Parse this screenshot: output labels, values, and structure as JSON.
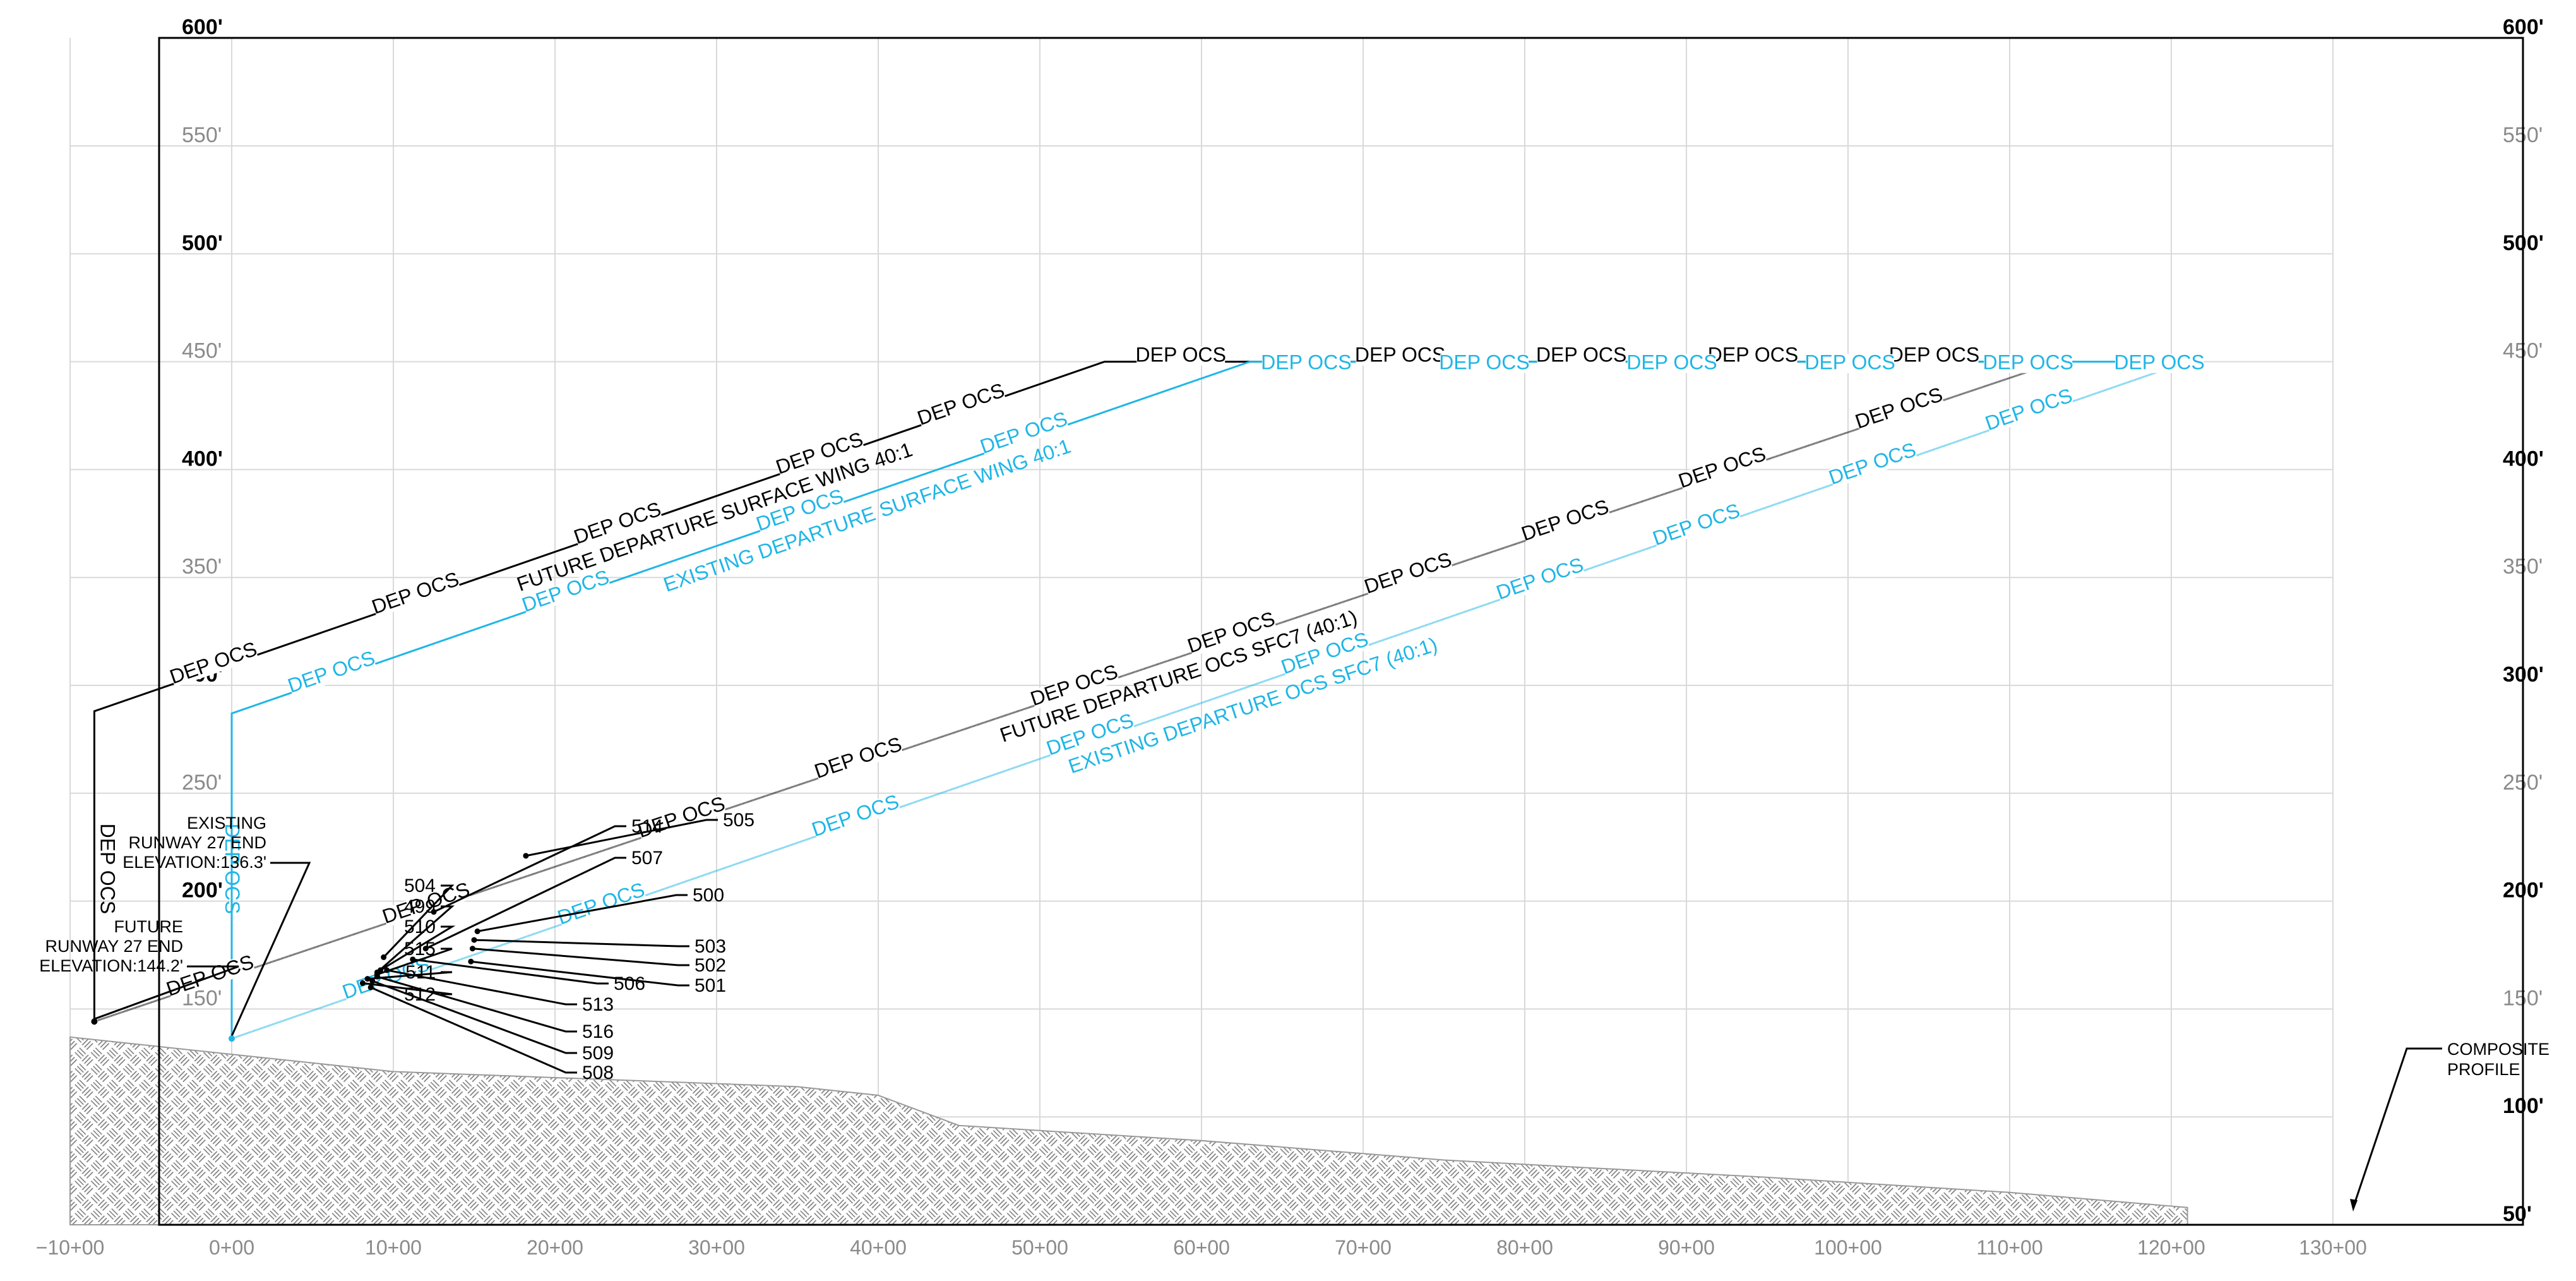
{
  "chart_data": {
    "type": "line",
    "x_axis": {
      "range": [
        "-10+00",
        "130+00"
      ],
      "tick_labels": [
        "-10+00",
        "0+00",
        "10+00",
        "20+00",
        "30+00",
        "40+00",
        "50+00",
        "60+00",
        "70+00",
        "80+00",
        "90+00",
        "100+00",
        "110+00",
        "120+00",
        "130+00"
      ]
    },
    "y_axis": {
      "range": [
        50,
        600
      ],
      "major_tick_labels": [
        "600'",
        "500'",
        "400'",
        "300'",
        "200'",
        "100'",
        "50'"
      ],
      "minor_tick_labels": [
        "550'",
        "450'",
        "350'",
        "250'",
        "150'"
      ],
      "labels_both_sides": true
    },
    "grid": true,
    "series": [
      {
        "name": "FUTURE DEPARTURE SURFACE WING 40:1",
        "color": "#000000",
        "points": [
          [
            -8.5,
            144.2
          ],
          [
            -8.5,
            288
          ],
          [
            54,
            450
          ],
          [
            113,
            450
          ]
        ]
      },
      {
        "name": "EXISTING DEPARTURE SURFACE WING 40:1",
        "color": "#1fb6e6",
        "points": [
          [
            0,
            136.3
          ],
          [
            0,
            287
          ],
          [
            63,
            450
          ],
          [
            121,
            450
          ]
        ]
      },
      {
        "name": "FUTURE DEPARTURE OCS SFC7 (40:1)",
        "color": "#000000",
        "points": [
          [
            -8.5,
            144.2
          ],
          [
            113,
            450
          ]
        ]
      },
      {
        "name": "EXISTING DEPARTURE OCS SFC7 (40:1)",
        "color": "#1fb6e6",
        "points": [
          [
            0,
            136.3
          ],
          [
            121,
            450
          ]
        ]
      }
    ],
    "composite_profile": [
      [
        -10,
        137
      ],
      [
        10,
        121
      ],
      [
        35,
        114
      ],
      [
        40,
        110
      ],
      [
        45,
        96
      ],
      [
        60,
        89
      ],
      [
        75,
        80
      ],
      [
        95,
        72
      ],
      [
        110,
        65
      ],
      [
        121,
        58
      ]
    ],
    "obstacles": [
      {
        "id": "499",
        "sta": 9.0,
        "elev": 167
      },
      {
        "id": "500",
        "sta": 15.2,
        "elev": 186
      },
      {
        "id": "501",
        "sta": 14.8,
        "elev": 172
      },
      {
        "id": "502",
        "sta": 14.9,
        "elev": 178
      },
      {
        "id": "503",
        "sta": 15.0,
        "elev": 182
      },
      {
        "id": "504",
        "sta": 9.4,
        "elev": 174
      },
      {
        "id": "505",
        "sta": 18.2,
        "elev": 221
      },
      {
        "id": "506",
        "sta": 11.2,
        "elev": 173
      },
      {
        "id": "507",
        "sta": 12.0,
        "elev": 178
      },
      {
        "id": "508",
        "sta": 8.6,
        "elev": 160
      },
      {
        "id": "509",
        "sta": 8.7,
        "elev": 163
      },
      {
        "id": "510",
        "sta": 9.2,
        "elev": 168
      },
      {
        "id": "511",
        "sta": 8.4,
        "elev": 164
      },
      {
        "id": "512",
        "sta": 8.1,
        "elev": 162
      },
      {
        "id": "513",
        "sta": 9.6,
        "elev": 168
      },
      {
        "id": "514",
        "sta": 12.5,
        "elev": 195
      },
      {
        "id": "515",
        "sta": 9.0,
        "elev": 166
      },
      {
        "id": "516",
        "sta": 9.0,
        "elev": 165
      }
    ],
    "text": {
      "dep_ocs": "DEP  OCS",
      "future_wing": "FUTURE DEPARTURE SURFACE WING 40:1",
      "existing_wing": "EXISTING DEPARTURE SURFACE WING 40:1",
      "future_sfc7": "FUTURE DEPARTURE OCS SFC7 (40:1)",
      "existing_sfc7": "EXISTING DEPARTURE OCS SFC7 (40:1)",
      "existing_rw_1": "EXISTING",
      "existing_rw_2": "RUNWAY 27 END",
      "existing_rw_3": "ELEVATION:136.3'",
      "future_rw_1": "FUTURE",
      "future_rw_2": "RUNWAY 27 END",
      "future_rw_3": "ELEVATION:144.2'",
      "composite_1": "COMPOSITE",
      "composite_2": "PROFILE"
    }
  }
}
